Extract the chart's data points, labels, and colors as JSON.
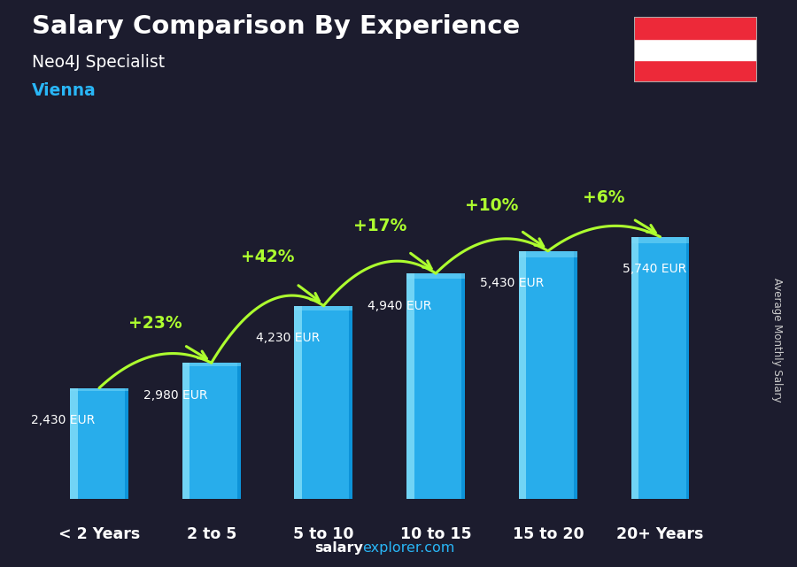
{
  "title": "Salary Comparison By Experience",
  "subtitle": "Neo4J Specialist",
  "city": "Vienna",
  "ylabel": "Average Monthly Salary",
  "footer_salary": "salary",
  "footer_explorer": "explorer.com",
  "categories": [
    "< 2 Years",
    "2 to 5",
    "5 to 10",
    "10 to 15",
    "15 to 20",
    "20+ Years"
  ],
  "values": [
    2430,
    2980,
    4230,
    4940,
    5430,
    5740
  ],
  "value_labels": [
    "2,430 EUR",
    "2,980 EUR",
    "4,230 EUR",
    "4,940 EUR",
    "5,430 EUR",
    "5,740 EUR"
  ],
  "pct_changes": [
    null,
    "+23%",
    "+42%",
    "+17%",
    "+10%",
    "+6%"
  ],
  "bar_color_main": "#29B6F6",
  "bar_color_light": "#7FDBF7",
  "bar_color_dark": "#0288D1",
  "bg_color": "#1c1c2e",
  "title_color": "#ffffff",
  "subtitle_color": "#ffffff",
  "city_color": "#29B6F6",
  "value_label_color": "#ffffff",
  "pct_color": "#ADFF2F",
  "cat_label_color": "#ffffff",
  "footer_salary_color": "#ffffff",
  "footer_explorer_color": "#29B6F6",
  "right_label_color": "#cccccc",
  "austria_flag_red": "#ED2939",
  "austria_flag_white": "#ffffff",
  "ylim_max": 7200,
  "bar_width": 0.52,
  "arc_heights": [
    0,
    600,
    800,
    780,
    720,
    600
  ]
}
